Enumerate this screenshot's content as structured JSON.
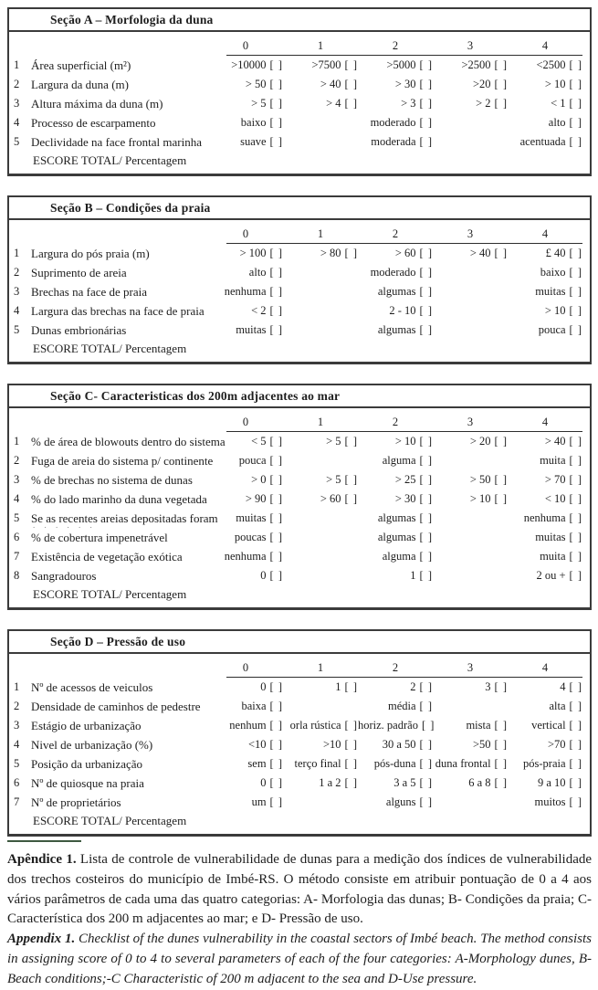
{
  "colors": {
    "border": "#3b3b3b",
    "caption_rule": "#3e5a40",
    "text": "#1d1d1d"
  },
  "checkbox_glyph": "[ ]",
  "score_total_label": "ESCORE TOTAL/ Percentagem",
  "sections": [
    {
      "id": "A",
      "title": "Seção A – Morfologia da duna",
      "score_columns": [
        "0",
        "1",
        "2",
        "3",
        "4"
      ],
      "rows": [
        {
          "num": "1",
          "label": "Área superficial (m²)",
          "cells": [
            ">10000",
            ">7500",
            ">5000",
            ">2500",
            "<2500"
          ]
        },
        {
          "num": "2",
          "label": "Largura da duna (m)",
          "cells": [
            "> 50",
            "> 40",
            "> 30",
            ">20",
            "> 10"
          ]
        },
        {
          "num": "3",
          "label": "Altura máxima da duna (m)",
          "cells": [
            "> 5",
            "> 4",
            "> 3",
            "> 2",
            "< 1"
          ]
        },
        {
          "num": "4",
          "label": "Processo de escarpamento",
          "cells": [
            "baixo",
            null,
            "moderado",
            null,
            "alto"
          ]
        },
        {
          "num": "5",
          "label": "Declividade na face frontal marinha",
          "cells": [
            "suave",
            null,
            "moderada",
            null,
            "acentuada"
          ]
        }
      ]
    },
    {
      "id": "B",
      "title": "Seção B – Condições da praia",
      "score_columns": [
        "0",
        "1",
        "2",
        "3",
        "4"
      ],
      "rows": [
        {
          "num": "1",
          "label": "Largura do pós praia (m)",
          "cells": [
            "> 100",
            "> 80",
            "> 60",
            "> 40",
            "£ 40"
          ]
        },
        {
          "num": "2",
          "label": "Suprimento de areia",
          "cells": [
            "alto",
            null,
            "moderado",
            null,
            "baixo"
          ]
        },
        {
          "num": "3",
          "label": "Brechas na face de praia",
          "cells": [
            "nenhuma",
            null,
            "algumas",
            null,
            "muitas"
          ]
        },
        {
          "num": "4",
          "label": "Largura das brechas na face de praia",
          "cells": [
            "< 2",
            null,
            "2 - 10",
            null,
            "> 10"
          ]
        },
        {
          "num": "5",
          "label": "Dunas embrionárias",
          "cells": [
            "muitas",
            null,
            "algumas",
            null,
            "pouca"
          ]
        }
      ]
    },
    {
      "id": "C",
      "title": "Seção C- Caracteristicas dos 200m adjacentes ao mar",
      "score_columns": [
        "0",
        "1",
        "2",
        "3",
        "4"
      ],
      "rows": [
        {
          "num": "1",
          "label": "% de área de blowouts dentro do sistema",
          "cells": [
            "< 5",
            "> 5",
            "> 10",
            "> 20",
            "> 40"
          ]
        },
        {
          "num": "2",
          "label": "Fuga de areia do sistema p/ continente",
          "cells": [
            "pouca",
            null,
            "alguma",
            null,
            "muita"
          ]
        },
        {
          "num": "3",
          "label": "% de brechas no sistema de dunas",
          "cells": [
            "> 0",
            "> 5",
            "> 25",
            "> 50",
            "> 70"
          ]
        },
        {
          "num": "4",
          "label": "% do lado marinho da duna vegetada",
          "cells": [
            "> 90",
            "> 60",
            "> 30",
            "> 10",
            "< 10"
          ]
        },
        {
          "num": "5",
          "label": "Se as recentes areias depositadas foram",
          "sub": ". .  .  .  . .",
          "cells": [
            "muitas",
            null,
            "algumas",
            null,
            "nenhuma"
          ]
        },
        {
          "num": "6",
          "label": "% de cobertura impenetrável",
          "cells": [
            "poucas",
            null,
            "algumas",
            null,
            "muitas"
          ]
        },
        {
          "num": "7",
          "label": "Existência de vegetação exótica",
          "cells": [
            "nenhuma",
            null,
            "alguma",
            null,
            "muita"
          ]
        },
        {
          "num": "8",
          "label": "Sangradouros",
          "cells": [
            "0",
            null,
            "1",
            null,
            "2 ou +"
          ]
        }
      ]
    },
    {
      "id": "D",
      "title": "Seção D – Pressão de uso",
      "score_columns": [
        "0",
        "1",
        "2",
        "3",
        "4"
      ],
      "rows": [
        {
          "num": "1",
          "label": "Nº de acessos de veiculos",
          "cells": [
            "0",
            "1",
            "2",
            "3",
            "4"
          ]
        },
        {
          "num": "2",
          "label": "Densidade de caminhos de pedestre",
          "cells": [
            "baixa",
            null,
            "média",
            null,
            "alta"
          ]
        },
        {
          "num": "3",
          "label": "Estágio de urbanização",
          "cells": [
            "nenhum",
            "orla rústica",
            "horiz. padrão",
            "mista",
            "vertical"
          ]
        },
        {
          "num": "4",
          "label": "Nivel de urbanização (%)",
          "cells": [
            "<10",
            ">10",
            "30 a 50",
            ">50",
            ">70"
          ]
        },
        {
          "num": "5",
          "label": "Posição da urbanização",
          "cells": [
            "sem",
            "terço final",
            "pós-duna",
            "duna frontal",
            "pós-praia"
          ]
        },
        {
          "num": "6",
          "label": "Nº de quiosque na praia",
          "cells": [
            "0",
            "1 a 2",
            "3 a 5",
            "6 a 8",
            "9 a 10"
          ]
        },
        {
          "num": "7",
          "label": "Nº de proprietários",
          "cells": [
            "um",
            null,
            "alguns",
            null,
            "muitos"
          ]
        }
      ]
    }
  ],
  "caption": {
    "pt_label": "Apêndice 1.",
    "pt_text": "Lista de controle de vulnerabilidade de dunas para a medição dos índices de vulnerabilidade dos trechos costeiros do município de Imbé-RS. O método consiste em atribuir pontuação de 0 a 4 aos vários parâmetros de cada uma das quatro categorias: A- Morfologia das dunas; B- Condições da praia; C- Característica dos 200 m adjacentes ao mar; e D- Pressão de uso.",
    "en_label": "Appendix 1.",
    "en_text": "Checklist of the dunes vulnerability in the coastal sectors of Imbé beach. The method consists in assigning score of 0 to 4 to several parameters of each of the four categories: A-Morphology dunes, B-Beach conditions;-C Characteristic of 200 m adjacent to the sea and D-Use pressure."
  }
}
